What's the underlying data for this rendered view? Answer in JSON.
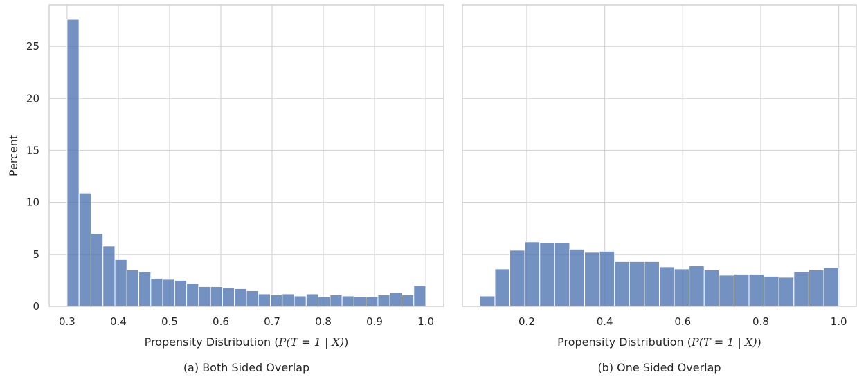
{
  "chart_data": [
    {
      "type": "bar",
      "caption": "(a) Both Sided Overlap",
      "xlabel_prefix": "Propensity Distribution (",
      "xlabel_math": "P(T = 1 | X)",
      "xlabel_suffix": ")",
      "ylabel": "Percent",
      "xlim": [
        0.265,
        1.035
      ],
      "ylim": [
        0,
        29
      ],
      "xticks": [
        0.3,
        0.4,
        0.5,
        0.6,
        0.7,
        0.8,
        0.9,
        1.0
      ],
      "yticks": [
        0,
        5,
        10,
        15,
        20,
        25
      ],
      "grid": true,
      "bins": {
        "start": 0.3,
        "width": 0.02333,
        "values": [
          27.6,
          10.9,
          7.0,
          5.8,
          4.5,
          3.5,
          3.3,
          2.7,
          2.6,
          2.5,
          2.2,
          1.9,
          1.9,
          1.8,
          1.7,
          1.5,
          1.2,
          1.1,
          1.2,
          1.0,
          1.2,
          0.9,
          1.1,
          1.0,
          0.9,
          0.9,
          1.1,
          1.3,
          1.1,
          2.0
        ]
      }
    },
    {
      "type": "bar",
      "caption": "(b) One Sided Overlap",
      "xlabel_prefix": "Propensity Distribution (",
      "xlabel_math": "P(T = 1 | X)",
      "xlabel_suffix": ")",
      "ylabel": "",
      "xlim": [
        0.035,
        1.045
      ],
      "ylim": [
        0,
        29
      ],
      "xticks": [
        0.2,
        0.4,
        0.6,
        0.8,
        1.0
      ],
      "yticks": [
        0,
        5,
        10,
        15,
        20,
        25
      ],
      "grid": true,
      "bins": {
        "start": 0.08,
        "width": 0.03833,
        "values": [
          1.0,
          3.6,
          5.4,
          6.2,
          6.1,
          6.1,
          5.5,
          5.2,
          5.3,
          4.3,
          4.3,
          4.3,
          3.8,
          3.6,
          3.9,
          3.5,
          3.0,
          3.1,
          3.1,
          2.9,
          2.8,
          3.3,
          3.5,
          3.7
        ]
      }
    }
  ],
  "style": {
    "bar_color": "#4c72b0",
    "bar_edge": "#ffffff",
    "grid_color": "#d4d4d4",
    "spine_color": "#cccccc"
  }
}
